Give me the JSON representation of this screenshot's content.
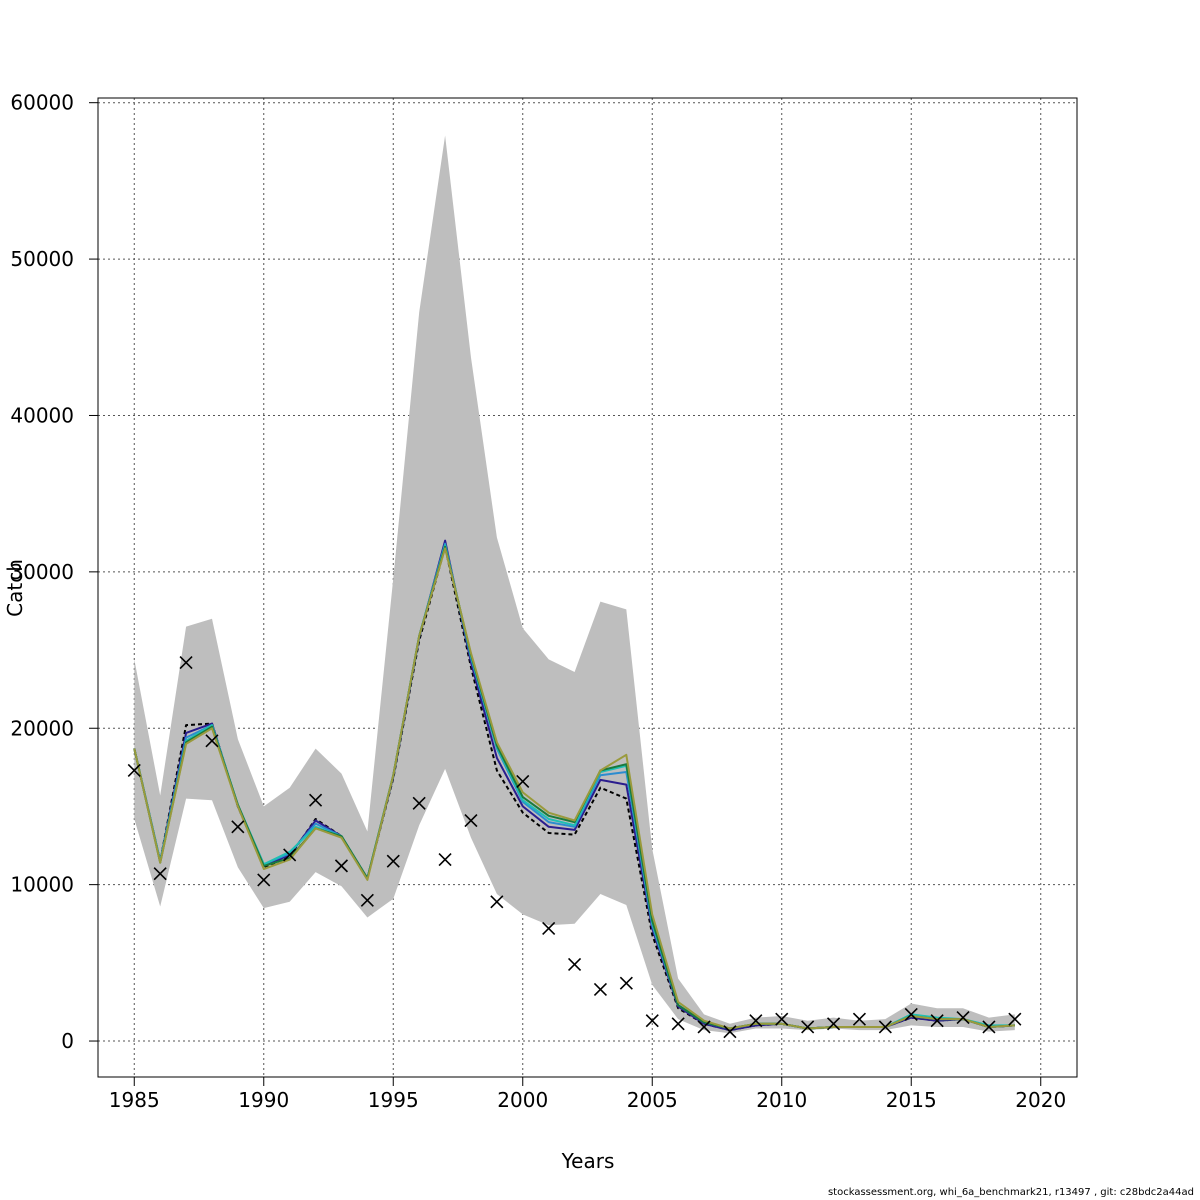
{
  "chart_data": {
    "type": "line",
    "xlabel": "Years",
    "ylabel": "Catch",
    "xlim": [
      1983.6,
      2021.4
    ],
    "ylim": [
      -2300,
      60300
    ],
    "x_ticks": [
      1985,
      1990,
      1995,
      2000,
      2005,
      2010,
      2015,
      2020
    ],
    "y_ticks": [
      0,
      10000,
      20000,
      30000,
      40000,
      50000,
      60000
    ],
    "grid": true,
    "years": [
      1985,
      1986,
      1987,
      1988,
      1989,
      1990,
      1991,
      1992,
      1993,
      1994,
      1995,
      1996,
      1997,
      1998,
      1999,
      2000,
      2001,
      2002,
      2003,
      2004,
      2005,
      2006,
      2007,
      2008,
      2009,
      2010,
      2011,
      2012,
      2013,
      2014,
      2015,
      2016,
      2017,
      2018,
      2019
    ],
    "confidence_band": {
      "color": "#bebebe",
      "lower": [
        14200,
        8600,
        15500,
        15400,
        11100,
        8500,
        8900,
        10800,
        9900,
        7900,
        9100,
        13800,
        17400,
        13000,
        9400,
        8100,
        7400,
        7500,
        9400,
        8700,
        3600,
        1400,
        700,
        500,
        800,
        800,
        700,
        800,
        700,
        700,
        1000,
        900,
        900,
        600,
        700
      ],
      "upper": [
        24400,
        15700,
        26500,
        27000,
        19300,
        15000,
        16200,
        18700,
        17100,
        13400,
        29600,
        46600,
        57900,
        43700,
        32200,
        26400,
        24400,
        23600,
        28100,
        27600,
        12300,
        4000,
        1700,
        1100,
        1500,
        1600,
        1300,
        1500,
        1300,
        1400,
        2400,
        2100,
        2100,
        1500,
        1700
      ]
    },
    "observed": {
      "marker": "x",
      "color": "#000000",
      "values": [
        17300,
        10700,
        24200,
        19200,
        13700,
        10300,
        11900,
        15400,
        11200,
        9000,
        11500,
        15200,
        11600,
        14100,
        8900,
        16600,
        7200,
        4900,
        3300,
        3700,
        1300,
        1100,
        900,
        600,
        1300,
        1400,
        900,
        1100,
        1400,
        900,
        1700,
        1300,
        1500,
        900,
        1400
      ]
    },
    "series": [
      {
        "color": "#000000",
        "dashed": true,
        "values": [
          18700,
          11500,
          20200,
          20300,
          15000,
          11100,
          11800,
          14200,
          13100,
          10400,
          16800,
          25600,
          31600,
          23900,
          17300,
          14600,
          13300,
          13200,
          16200,
          15500,
          6800,
          2100,
          1100,
          700,
          1000,
          1100,
          800,
          900,
          900,
          900,
          1500,
          1300,
          1400,
          900,
          1000
        ]
      },
      {
        "color": "#2b1d8e",
        "values": [
          18700,
          11500,
          19700,
          20300,
          15000,
          11200,
          11900,
          14100,
          13100,
          10400,
          16900,
          25800,
          32000,
          24200,
          18100,
          15000,
          13700,
          13500,
          16700,
          16400,
          7200,
          2200,
          1100,
          700,
          1000,
          1100,
          800,
          900,
          900,
          900,
          1500,
          1300,
          1400,
          900,
          1000
        ]
      },
      {
        "color": "#2c8ccf",
        "values": [
          18700,
          11500,
          19400,
          20200,
          15100,
          11300,
          12000,
          13900,
          13100,
          10400,
          17000,
          25900,
          31800,
          24500,
          18700,
          15300,
          14000,
          13700,
          17000,
          17200,
          7400,
          2300,
          1200,
          800,
          1100,
          1100,
          800,
          900,
          900,
          900,
          1600,
          1400,
          1400,
          900,
          1000
        ]
      },
      {
        "color": "#1fbfb4",
        "values": [
          18700,
          11500,
          19200,
          20200,
          15100,
          11300,
          12100,
          13700,
          13100,
          10400,
          17000,
          25900,
          31700,
          24600,
          18800,
          15400,
          14200,
          13800,
          17200,
          17600,
          7600,
          2300,
          1200,
          800,
          1100,
          1100,
          800,
          900,
          900,
          900,
          1700,
          1500,
          1400,
          1000,
          1000
        ]
      },
      {
        "color": "#1b7a3c",
        "values": [
          18700,
          11400,
          19100,
          20100,
          15100,
          11200,
          11700,
          13600,
          13100,
          10400,
          17000,
          25900,
          31600,
          24700,
          18900,
          15600,
          14400,
          14000,
          17300,
          17700,
          7700,
          2300,
          1200,
          800,
          1100,
          1100,
          800,
          900,
          900,
          900,
          1600,
          1400,
          1400,
          900,
          1000
        ]
      },
      {
        "color": "#9a9a3c",
        "values": [
          18700,
          11400,
          19000,
          20000,
          15000,
          11000,
          11600,
          13600,
          13000,
          10300,
          17000,
          25900,
          31500,
          24800,
          19100,
          15900,
          14600,
          14100,
          17300,
          18300,
          8100,
          2500,
          1300,
          800,
          1100,
          1100,
          800,
          900,
          900,
          900,
          1600,
          1400,
          1400,
          900,
          1000
        ]
      }
    ]
  },
  "footer": {
    "text": "stockassessment.org, whi_6a_benchmark21, r13497 , git: c28bdc2a44ad"
  }
}
